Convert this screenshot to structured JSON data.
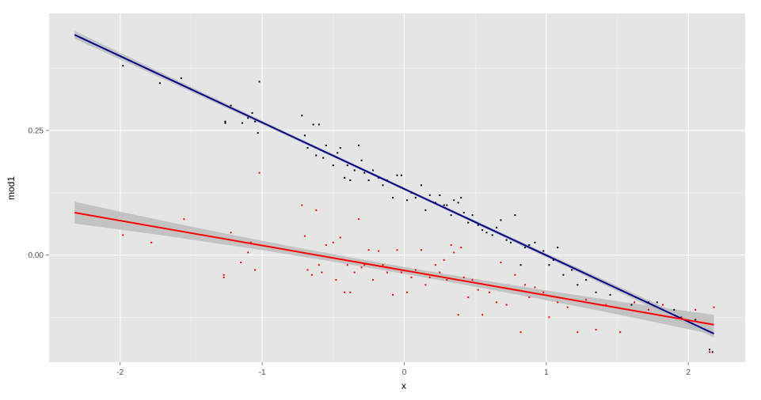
{
  "chart_data": {
    "type": "scatter",
    "xlabel": "x",
    "ylabel": "mod1",
    "xlim": [
      -2.5,
      2.4
    ],
    "ylim": [
      -0.215,
      0.485
    ],
    "x_ticks": [
      -2,
      -1,
      0,
      1,
      2
    ],
    "x_tick_labels": [
      "-2",
      "-1",
      "0",
      "1",
      "2"
    ],
    "y_ticks": [
      0.0,
      0.25
    ],
    "y_tick_labels": [
      "0.00",
      "0.25"
    ],
    "y_minor_ticks": [
      -0.125,
      0.125,
      0.375
    ],
    "x_minor_ticks": [
      -1.5,
      -0.5,
      0.5,
      1.5
    ],
    "grid": true,
    "colors": {
      "panel": "#e5e5e5",
      "grid": "#ffffff",
      "band": "#bdbdbd",
      "series_black_points": "#000000",
      "series_black_line": "#00008b",
      "series_red_points": "#ff0000",
      "series_red_line": "#ff0000"
    },
    "series": [
      {
        "color": "#000000",
        "line_color": "#00008b",
        "fit": {
          "x": [
            -2.32,
            2.18
          ],
          "y": [
            0.442,
            -0.158
          ]
        },
        "band_halfwidth": [
          0.008,
          0.003,
          0.008
        ],
        "points": [
          [
            -1.98,
            0.38
          ],
          [
            -1.72,
            0.345
          ],
          [
            -1.57,
            0.355
          ],
          [
            -1.26,
            0.265
          ],
          [
            -1.26,
            0.268
          ],
          [
            -1.22,
            0.3
          ],
          [
            -1.14,
            0.265
          ],
          [
            -1.1,
            0.275
          ],
          [
            -1.07,
            0.285
          ],
          [
            -1.05,
            0.268
          ],
          [
            -1.03,
            0.245
          ],
          [
            -1.02,
            0.348
          ],
          [
            -0.72,
            0.28
          ],
          [
            -0.7,
            0.24
          ],
          [
            -0.68,
            0.215
          ],
          [
            -0.64,
            0.262
          ],
          [
            -0.62,
            0.2
          ],
          [
            -0.6,
            0.262
          ],
          [
            -0.57,
            0.195
          ],
          [
            -0.55,
            0.22
          ],
          [
            -0.5,
            0.18
          ],
          [
            -0.47,
            0.205
          ],
          [
            -0.45,
            0.215
          ],
          [
            -0.42,
            0.155
          ],
          [
            -0.4,
            0.18
          ],
          [
            -0.38,
            0.15
          ],
          [
            -0.35,
            0.17
          ],
          [
            -0.32,
            0.22
          ],
          [
            -0.3,
            0.19
          ],
          [
            -0.28,
            0.165
          ],
          [
            -0.25,
            0.15
          ],
          [
            -0.22,
            0.17
          ],
          [
            -0.18,
            0.155
          ],
          [
            -0.15,
            0.14
          ],
          [
            -0.12,
            0.15
          ],
          [
            -0.08,
            0.115
          ],
          [
            -0.05,
            0.16
          ],
          [
            -0.02,
            0.16
          ],
          [
            0.02,
            0.11
          ],
          [
            0.05,
            0.125
          ],
          [
            0.08,
            0.115
          ],
          [
            0.12,
            0.14
          ],
          [
            0.15,
            0.09
          ],
          [
            0.18,
            0.12
          ],
          [
            0.22,
            0.105
          ],
          [
            0.25,
            0.12
          ],
          [
            0.28,
            0.1
          ],
          [
            0.3,
            0.1
          ],
          [
            0.33,
            0.08
          ],
          [
            0.35,
            0.11
          ],
          [
            0.38,
            0.105
          ],
          [
            0.4,
            0.115
          ],
          [
            0.42,
            0.085
          ],
          [
            0.45,
            0.065
          ],
          [
            0.48,
            0.08
          ],
          [
            0.52,
            0.06
          ],
          [
            0.55,
            0.05
          ],
          [
            0.58,
            0.045
          ],
          [
            0.62,
            0.04
          ],
          [
            0.65,
            0.055
          ],
          [
            0.68,
            0.07
          ],
          [
            0.72,
            0.03
          ],
          [
            0.75,
            0.025
          ],
          [
            0.78,
            0.08
          ],
          [
            0.82,
            -0.02
          ],
          [
            0.85,
            0.015
          ],
          [
            0.88,
            0.02
          ],
          [
            0.92,
            0.025
          ],
          [
            0.98,
            0.008
          ],
          [
            1.02,
            -0.02
          ],
          [
            1.05,
            -0.01
          ],
          [
            1.08,
            0.015
          ],
          [
            1.12,
            -0.04
          ],
          [
            1.18,
            -0.03
          ],
          [
            1.22,
            -0.06
          ],
          [
            1.28,
            -0.05
          ],
          [
            1.35,
            -0.075
          ],
          [
            1.45,
            -0.08
          ],
          [
            1.6,
            -0.1
          ],
          [
            1.72,
            -0.095
          ],
          [
            1.78,
            -0.095
          ],
          [
            1.9,
            -0.11
          ],
          [
            2.05,
            -0.13
          ],
          [
            2.15,
            -0.19
          ],
          [
            2.17,
            -0.195
          ]
        ]
      },
      {
        "color": "#ff0000",
        "line_color": "#ff0000",
        "fit": {
          "x": [
            -2.32,
            2.18
          ],
          "y": [
            0.085,
            -0.14
          ]
        },
        "band_halfwidth": [
          0.022,
          0.007,
          0.02
        ],
        "points": [
          [
            -1.98,
            0.04
          ],
          [
            -1.78,
            0.025
          ],
          [
            -1.55,
            0.072
          ],
          [
            -1.27,
            -0.04
          ],
          [
            -1.27,
            -0.045
          ],
          [
            -1.22,
            0.045
          ],
          [
            -1.15,
            -0.015
          ],
          [
            -1.1,
            0.005
          ],
          [
            -1.08,
            0.025
          ],
          [
            -1.05,
            -0.03
          ],
          [
            -1.02,
            0.165
          ],
          [
            -0.72,
            0.1
          ],
          [
            -0.7,
            0.038
          ],
          [
            -0.68,
            -0.03
          ],
          [
            -0.65,
            -0.04
          ],
          [
            -0.62,
            0.09
          ],
          [
            -0.6,
            -0.02
          ],
          [
            -0.58,
            -0.035
          ],
          [
            -0.55,
            0.02
          ],
          [
            -0.5,
            0.025
          ],
          [
            -0.48,
            -0.05
          ],
          [
            -0.45,
            0.035
          ],
          [
            -0.42,
            -0.075
          ],
          [
            -0.4,
            -0.02
          ],
          [
            -0.38,
            -0.075
          ],
          [
            -0.35,
            -0.035
          ],
          [
            -0.32,
            0.072
          ],
          [
            -0.3,
            -0.025
          ],
          [
            -0.28,
            -0.02
          ],
          [
            -0.25,
            0.01
          ],
          [
            -0.22,
            -0.05
          ],
          [
            -0.18,
            0.008
          ],
          [
            -0.15,
            -0.02
          ],
          [
            -0.12,
            -0.035
          ],
          [
            -0.08,
            -0.08
          ],
          [
            -0.05,
            0.01
          ],
          [
            -0.02,
            -0.035
          ],
          [
            0.02,
            -0.075
          ],
          [
            0.05,
            -0.045
          ],
          [
            0.08,
            -0.03
          ],
          [
            0.12,
            0.01
          ],
          [
            0.15,
            -0.06
          ],
          [
            0.18,
            -0.045
          ],
          [
            0.22,
            -0.02
          ],
          [
            0.25,
            -0.035
          ],
          [
            0.28,
            -0.01
          ],
          [
            0.3,
            -0.05
          ],
          [
            0.33,
            0.02
          ],
          [
            0.35,
            0.005
          ],
          [
            0.38,
            -0.12
          ],
          [
            0.4,
            0.015
          ],
          [
            0.42,
            -0.045
          ],
          [
            0.45,
            -0.085
          ],
          [
            0.48,
            -0.05
          ],
          [
            0.52,
            -0.07
          ],
          [
            0.55,
            -0.12
          ],
          [
            0.6,
            -0.075
          ],
          [
            0.65,
            -0.095
          ],
          [
            0.68,
            -0.015
          ],
          [
            0.72,
            -0.1
          ],
          [
            0.78,
            -0.04
          ],
          [
            0.82,
            -0.155
          ],
          [
            0.85,
            -0.06
          ],
          [
            0.88,
            -0.085
          ],
          [
            0.92,
            -0.065
          ],
          [
            0.98,
            -0.075
          ],
          [
            1.02,
            -0.125
          ],
          [
            1.08,
            -0.095
          ],
          [
            1.15,
            -0.105
          ],
          [
            1.22,
            -0.155
          ],
          [
            1.28,
            -0.09
          ],
          [
            1.35,
            -0.15
          ],
          [
            1.42,
            -0.1
          ],
          [
            1.52,
            -0.155
          ],
          [
            1.62,
            -0.095
          ],
          [
            1.72,
            -0.11
          ],
          [
            1.82,
            -0.1
          ],
          [
            1.95,
            -0.125
          ],
          [
            2.05,
            -0.11
          ],
          [
            2.15,
            -0.195
          ],
          [
            2.18,
            -0.105
          ]
        ]
      }
    ]
  }
}
